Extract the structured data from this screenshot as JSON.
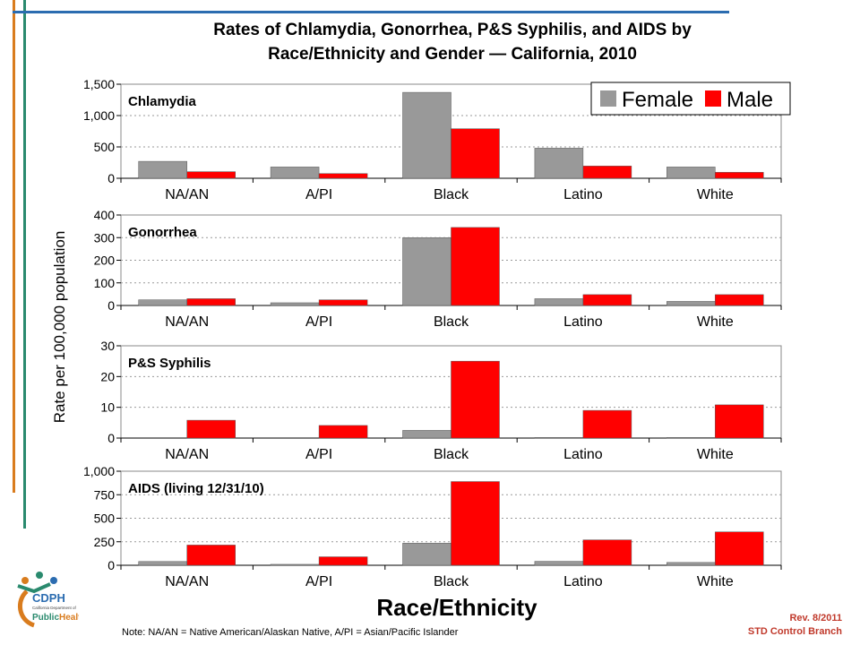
{
  "title": {
    "line1": "Rates of Chlamydia, Gonorrhea, P&S Syphilis, and AIDS by",
    "line2": "Race/Ethnicity and Gender — California, 2010"
  },
  "footnote": "Note:  NA/AN = Native American/Alaskan Native, A/PI = Asian/Pacific Islander",
  "revision": "Rev. 8/2011",
  "branch": "STD Control Branch",
  "logo": {
    "mark": "CDPH",
    "subtitle": "California Department of",
    "wordmark_public": "Public",
    "wordmark_health": "Health"
  },
  "colors": {
    "female": "#999999",
    "male": "#ff0000",
    "accent_orange": "#d97c1e",
    "accent_green": "#2a8a6e",
    "accent_blue": "#2b6cb0",
    "revision": "#c0392b"
  },
  "chart_data": {
    "type": "bar",
    "ylabel": "Rate per 100,000 population",
    "xlabel": "Race/Ethnicity",
    "legend": {
      "placement": "top-right",
      "entries": [
        "Female",
        "Male"
      ]
    },
    "categories": [
      "NA/AN",
      "A/PI",
      "Black",
      "Latino",
      "White"
    ],
    "panels": [
      {
        "label": "Chlamydia",
        "ylim": [
          0,
          1500
        ],
        "yticks": [
          0,
          500,
          1000,
          1500
        ],
        "ytick_labels": [
          "0",
          "500",
          "1,000",
          "1,500"
        ],
        "series": [
          {
            "name": "Female",
            "values": [
              270,
              180,
              1370,
              480,
              180
            ]
          },
          {
            "name": "Male",
            "values": [
              105,
              75,
              790,
              195,
              95
            ]
          }
        ]
      },
      {
        "label": "Gonorrhea",
        "ylim": [
          0,
          400
        ],
        "yticks": [
          0,
          100,
          200,
          300,
          400
        ],
        "ytick_labels": [
          "0",
          "100",
          "200",
          "300",
          "400"
        ],
        "series": [
          {
            "name": "Female",
            "values": [
              25,
              12,
              300,
              30,
              18
            ]
          },
          {
            "name": "Male",
            "values": [
              30,
              25,
              345,
              48,
              48
            ]
          }
        ]
      },
      {
        "label": "P&S Syphilis",
        "ylim": [
          0,
          30
        ],
        "yticks": [
          0,
          10,
          20,
          30
        ],
        "ytick_labels": [
          "0",
          "10",
          "20",
          "30"
        ],
        "series": [
          {
            "name": "Female",
            "values": [
              0,
              0,
              2.5,
              0.2,
              0.2
            ]
          },
          {
            "name": "Male",
            "values": [
              5.8,
              4.1,
              25,
              9,
              10.8
            ]
          }
        ]
      },
      {
        "label": "AIDS (living 12/31/10)",
        "ylim": [
          0,
          1000
        ],
        "yticks": [
          0,
          250,
          500,
          750,
          1000
        ],
        "ytick_labels": [
          "0",
          "250",
          "500",
          "750",
          "1,000"
        ],
        "series": [
          {
            "name": "Female",
            "values": [
              40,
              10,
              235,
              42,
              30
            ]
          },
          {
            "name": "Male",
            "values": [
              215,
              90,
              890,
              270,
              355
            ]
          }
        ]
      }
    ]
  }
}
